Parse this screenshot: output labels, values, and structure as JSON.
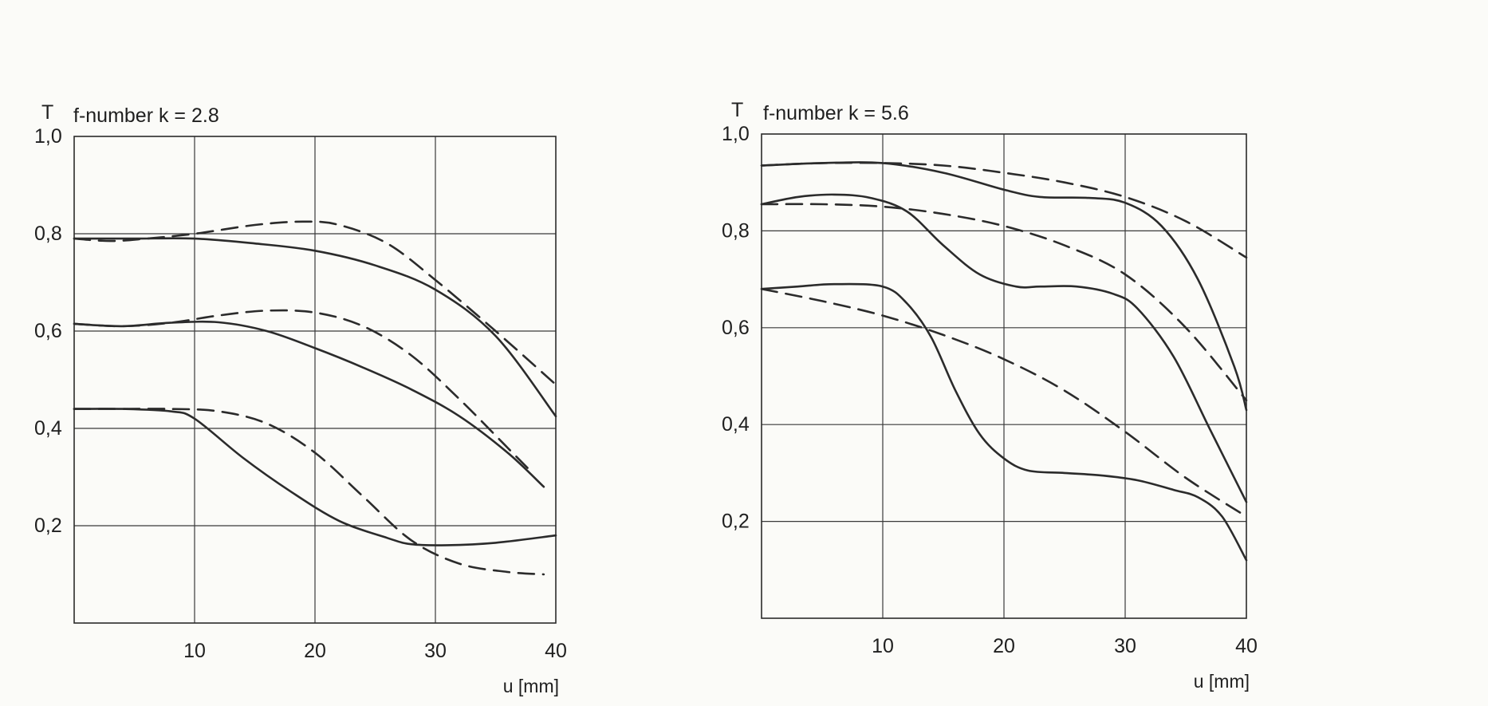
{
  "chart_data": [
    {
      "type": "line",
      "title": "f-number k = 2.8",
      "ylabel": "T",
      "xlabel": "u [mm]",
      "xlim": [
        0,
        40
      ],
      "ylim": [
        0,
        1.0
      ],
      "x_ticks": [
        "10",
        "20",
        "30",
        "40"
      ],
      "y_ticks": [
        "1,0",
        "0,8",
        "0,6",
        "0,4",
        "0,2"
      ],
      "grid": true,
      "series": [
        {
          "style": "solid",
          "x": [
            0,
            5,
            10,
            15,
            20,
            25,
            30,
            35,
            40
          ],
          "y": [
            0.79,
            0.79,
            0.79,
            0.78,
            0.765,
            0.735,
            0.685,
            0.59,
            0.425
          ]
        },
        {
          "style": "dashed",
          "x": [
            0,
            3,
            6,
            10,
            15,
            19,
            22,
            26,
            30,
            35,
            40
          ],
          "y": [
            0.79,
            0.785,
            0.79,
            0.8,
            0.818,
            0.825,
            0.818,
            0.78,
            0.705,
            0.6,
            0.49
          ]
        },
        {
          "style": "solid",
          "x": [
            0,
            4,
            8,
            12,
            16,
            20,
            24,
            28,
            32,
            36,
            39
          ],
          "y": [
            0.615,
            0.61,
            0.617,
            0.618,
            0.6,
            0.565,
            0.525,
            0.48,
            0.425,
            0.35,
            0.28
          ]
        },
        {
          "style": "dashed",
          "x": [
            0,
            4,
            8,
            12,
            16,
            20,
            24,
            28,
            32,
            36,
            38
          ],
          "y": [
            0.615,
            0.61,
            0.617,
            0.632,
            0.642,
            0.638,
            0.61,
            0.55,
            0.46,
            0.36,
            0.31
          ]
        },
        {
          "style": "solid",
          "x": [
            0,
            4,
            8,
            10,
            14,
            18,
            22,
            26,
            28,
            31,
            35,
            40
          ],
          "y": [
            0.44,
            0.44,
            0.435,
            0.42,
            0.34,
            0.27,
            0.21,
            0.175,
            0.162,
            0.16,
            0.165,
            0.18
          ]
        },
        {
          "style": "dashed",
          "x": [
            0,
            4,
            8,
            12,
            16,
            20,
            24,
            28,
            32,
            36,
            39
          ],
          "y": [
            0.44,
            0.44,
            0.44,
            0.435,
            0.41,
            0.35,
            0.26,
            0.17,
            0.122,
            0.105,
            0.1
          ]
        }
      ]
    },
    {
      "type": "line",
      "title": "f-number k = 5.6",
      "ylabel": "T",
      "xlabel": "u [mm]",
      "xlim": [
        0,
        40
      ],
      "ylim": [
        0,
        1.0
      ],
      "x_ticks": [
        "10",
        "20",
        "30",
        "40"
      ],
      "y_ticks": [
        "1,0",
        "0,8",
        "0,6",
        "0,4",
        "0,2"
      ],
      "grid": true,
      "series": [
        {
          "style": "solid",
          "x": [
            0,
            5,
            10,
            15,
            20,
            23,
            27,
            30,
            33,
            36,
            39,
            40
          ],
          "y": [
            0.935,
            0.94,
            0.94,
            0.92,
            0.885,
            0.87,
            0.868,
            0.858,
            0.81,
            0.7,
            0.52,
            0.43
          ]
        },
        {
          "style": "dashed",
          "x": [
            0,
            5,
            10,
            15,
            20,
            25,
            30,
            35,
            40
          ],
          "y": [
            0.935,
            0.94,
            0.94,
            0.935,
            0.92,
            0.9,
            0.87,
            0.82,
            0.745
          ]
        },
        {
          "style": "solid",
          "x": [
            0,
            3,
            6,
            9,
            12,
            15,
            18,
            21,
            23,
            26,
            29,
            31,
            34,
            37,
            40
          ],
          "y": [
            0.855,
            0.87,
            0.875,
            0.868,
            0.84,
            0.77,
            0.71,
            0.685,
            0.685,
            0.685,
            0.67,
            0.64,
            0.54,
            0.39,
            0.24
          ]
        },
        {
          "style": "dashed",
          "x": [
            0,
            5,
            10,
            15,
            20,
            25,
            30,
            35,
            40
          ],
          "y": [
            0.855,
            0.855,
            0.85,
            0.835,
            0.81,
            0.77,
            0.71,
            0.6,
            0.45
          ]
        },
        {
          "style": "solid",
          "x": [
            0,
            3,
            6,
            10,
            12,
            14,
            16,
            18,
            20,
            22,
            25,
            28,
            31,
            34,
            36,
            38,
            40
          ],
          "y": [
            0.68,
            0.685,
            0.69,
            0.685,
            0.65,
            0.58,
            0.47,
            0.38,
            0.33,
            0.305,
            0.3,
            0.295,
            0.285,
            0.265,
            0.25,
            0.21,
            0.12
          ]
        },
        {
          "style": "dashed",
          "x": [
            0,
            5,
            10,
            15,
            20,
            25,
            30,
            35,
            40
          ],
          "y": [
            0.68,
            0.655,
            0.625,
            0.585,
            0.535,
            0.47,
            0.385,
            0.29,
            0.21
          ]
        }
      ]
    }
  ]
}
